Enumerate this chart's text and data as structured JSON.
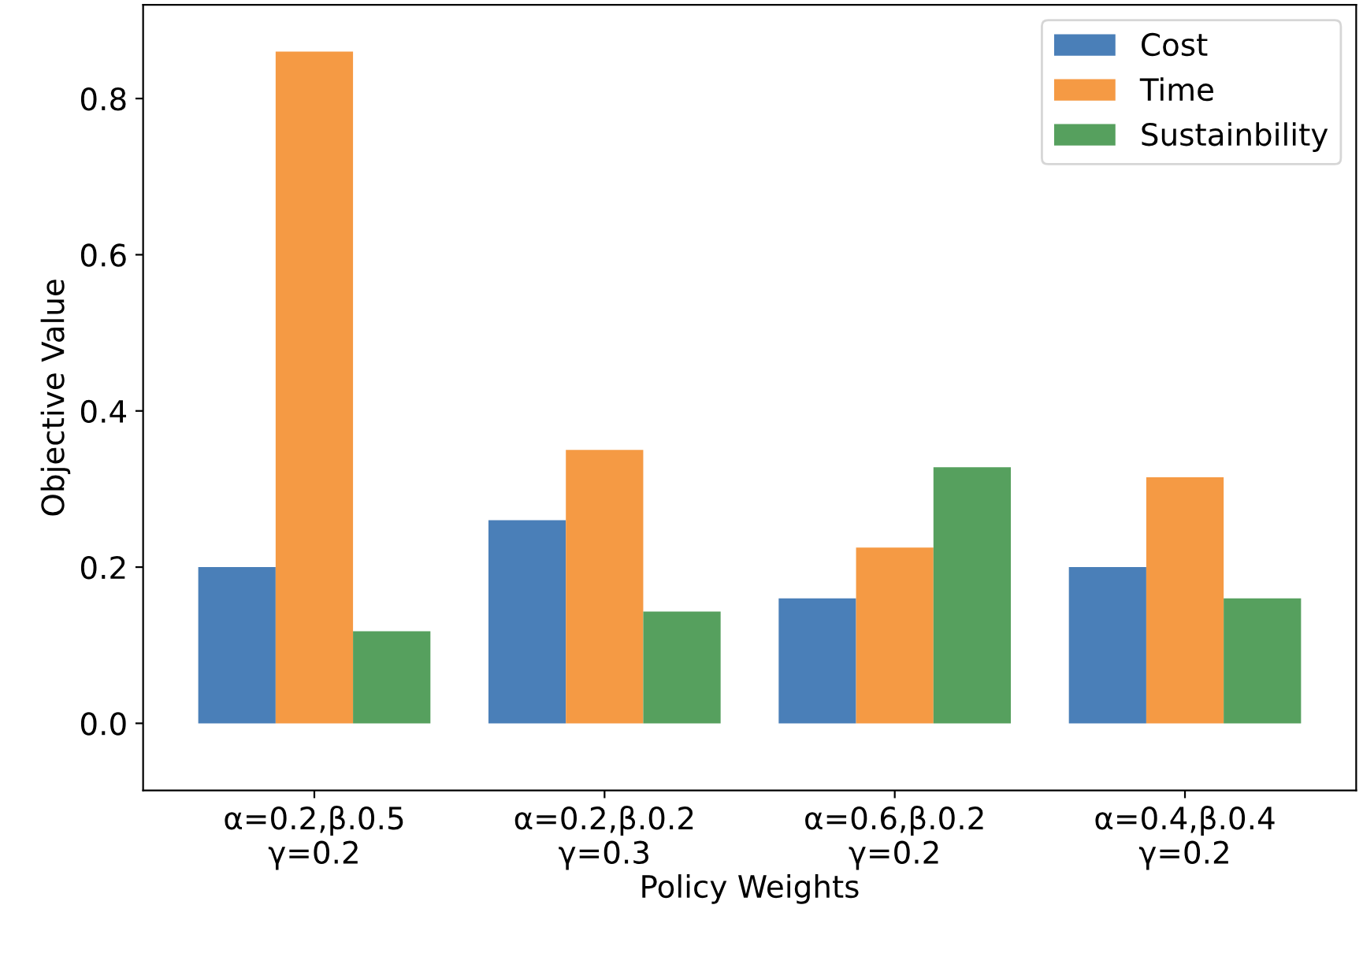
{
  "chart_data": {
    "type": "bar",
    "xlabel": "Policy Weights",
    "ylabel": "Objective Value",
    "categories": [
      "α=0.2,β.0.5\nγ=0.2",
      "α=0.2,β.0.2\nγ=0.3",
      "α=0.6,β.0.2\nγ=0.2",
      "α=0.4,β.0.4\nγ=0.2"
    ],
    "series": [
      {
        "name": "Cost",
        "color": "#4a7fb8",
        "values": [
          0.2,
          0.26,
          0.16,
          0.2
        ]
      },
      {
        "name": "Time",
        "color": "#f59a44",
        "values": [
          0.86,
          0.35,
          0.225,
          0.315
        ]
      },
      {
        "name": "Sustainbility",
        "color": "#56a05e",
        "values": [
          0.118,
          0.143,
          0.328,
          0.16
        ]
      }
    ],
    "ylim": [
      -0.086,
      0.92
    ],
    "yticks": [
      {
        "value": 0,
        "label": "0.0"
      },
      0.2,
      0.4,
      0.6,
      0.8
    ],
    "legend": "top right",
    "grid": false
  }
}
